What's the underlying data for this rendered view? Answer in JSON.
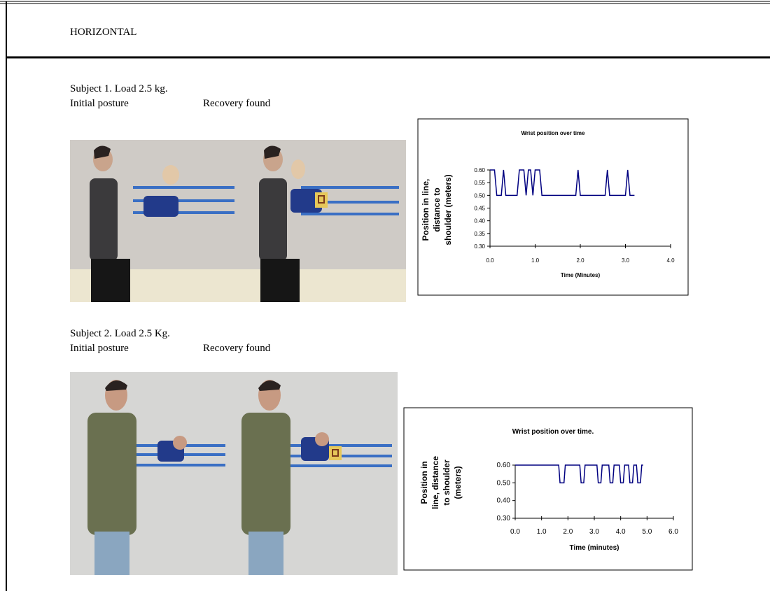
{
  "header": {
    "title": "HORIZONTAL"
  },
  "sections": [
    {
      "title": "Subject 1. Load 2.5 kg.",
      "labels": [
        "Initial posture",
        "Recovery found"
      ]
    },
    {
      "title": "Subject 2. Load 2.5 Kg.",
      "labels": [
        "Initial posture",
        "Recovery found"
      ]
    }
  ],
  "chart_data": [
    {
      "type": "line",
      "title": "Wrist position over time",
      "xlabel": "Time (Minutes)",
      "ylabel": [
        "Position in line,",
        "distance to",
        "shoulder (meters)"
      ],
      "x": [
        0,
        0.1,
        0.15,
        0.25,
        0.3,
        0.35,
        0.6,
        0.65,
        0.75,
        0.8,
        0.85,
        0.9,
        0.95,
        1.0,
        1.1,
        1.15,
        1.9,
        1.95,
        2.0,
        2.55,
        2.6,
        2.65,
        3.0,
        3.05,
        3.1,
        3.2
      ],
      "series": [
        {
          "color": "#000080",
          "values": [
            0.6,
            0.6,
            0.5,
            0.5,
            0.6,
            0.5,
            0.5,
            0.6,
            0.6,
            0.5,
            0.6,
            0.6,
            0.5,
            0.6,
            0.6,
            0.5,
            0.5,
            0.6,
            0.5,
            0.5,
            0.6,
            0.5,
            0.5,
            0.6,
            0.5,
            0.5
          ]
        }
      ],
      "xlim": [
        0,
        4
      ],
      "xticks": [
        {
          "value": 0,
          "label": "0.0"
        },
        {
          "value": 1,
          "label": "1.0"
        },
        {
          "value": 2,
          "label": "2.0"
        },
        {
          "value": 3,
          "label": "3.0"
        },
        {
          "value": 4,
          "label": "4.0"
        }
      ],
      "ylim": [
        0.3,
        0.6
      ],
      "yticks": [
        {
          "value": 0.3,
          "label": "0.30"
        },
        {
          "value": 0.35,
          "label": "0.35"
        },
        {
          "value": 0.4,
          "label": "0.40"
        },
        {
          "value": 0.45,
          "label": "0.45"
        },
        {
          "value": 0.5,
          "label": "0.50"
        },
        {
          "value": 0.55,
          "label": "0.55"
        },
        {
          "value": 0.6,
          "label": "0.60"
        }
      ]
    },
    {
      "type": "line",
      "title": "Wrist position over time.",
      "xlabel": "Time (minutes)",
      "ylabel": [
        "Position in",
        "line, distance",
        "to shoulder",
        "(meters)"
      ],
      "x": [
        0,
        1.65,
        1.7,
        1.85,
        1.9,
        2.45,
        2.5,
        2.6,
        2.65,
        3.1,
        3.15,
        3.25,
        3.3,
        3.55,
        3.6,
        3.7,
        3.75,
        3.95,
        4.0,
        4.1,
        4.15,
        4.3,
        4.35,
        4.45,
        4.5,
        4.6,
        4.65,
        4.75,
        4.8,
        4.85
      ],
      "series": [
        {
          "color": "#000080",
          "values": [
            0.6,
            0.6,
            0.5,
            0.5,
            0.6,
            0.6,
            0.5,
            0.5,
            0.6,
            0.6,
            0.5,
            0.5,
            0.6,
            0.6,
            0.5,
            0.5,
            0.6,
            0.6,
            0.5,
            0.5,
            0.6,
            0.6,
            0.5,
            0.5,
            0.6,
            0.6,
            0.5,
            0.5,
            0.6,
            0.6
          ]
        }
      ],
      "xlim": [
        0,
        6
      ],
      "xticks": [
        {
          "value": 0,
          "label": "0.0"
        },
        {
          "value": 1,
          "label": "1.0"
        },
        {
          "value": 2,
          "label": "2.0"
        },
        {
          "value": 3,
          "label": "3.0"
        },
        {
          "value": 4,
          "label": "4.0"
        },
        {
          "value": 5,
          "label": "5.0"
        },
        {
          "value": 6,
          "label": "6.0"
        }
      ],
      "ylim": [
        0.3,
        0.6
      ],
      "yticks": [
        {
          "value": 0.3,
          "label": "0.30"
        },
        {
          "value": 0.4,
          "label": "0.40"
        },
        {
          "value": 0.5,
          "label": "0.50"
        },
        {
          "value": 0.6,
          "label": "0.60"
        }
      ]
    }
  ]
}
